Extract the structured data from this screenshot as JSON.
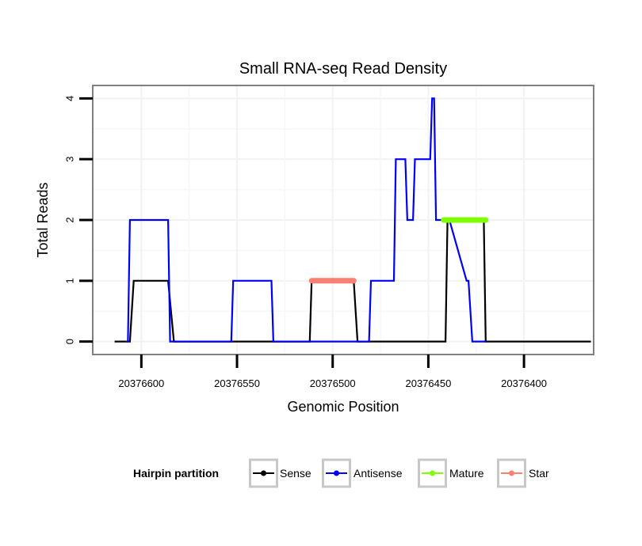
{
  "chart_data": {
    "type": "line",
    "title": "Small RNA-seq Read Density",
    "xlabel": "Genomic Position",
    "ylabel": "Total Reads",
    "x_reversed": true,
    "xlim": [
      20376364,
      20376625
    ],
    "ylim": [
      -0.2,
      4.2
    ],
    "x_ticks": [
      20376600,
      20376550,
      20376500,
      20376450,
      20376400
    ],
    "x_tick_labels": [
      "20376600",
      "20376550",
      "20376500",
      "20376450",
      "20376400"
    ],
    "y_ticks": [
      0,
      1,
      2,
      3,
      4
    ],
    "y_tick_labels": [
      "0",
      "1",
      "2",
      "3",
      "4"
    ],
    "grid": true,
    "legend": {
      "title": "Hairpin partition",
      "position": "bottom",
      "entries": [
        {
          "name": "Sense",
          "color": "#000000"
        },
        {
          "name": "Antisense",
          "color": "#0000ff"
        },
        {
          "name": "Mature",
          "color": "#7fff00"
        },
        {
          "name": "Star",
          "color": "#fa8072"
        }
      ]
    },
    "series": [
      {
        "name": "Sense",
        "color": "#000000",
        "x": [
          20376614,
          20376606,
          20376604,
          20376586,
          20376583,
          20376512,
          20376511,
          20376489,
          20376487,
          20376441,
          20376440,
          20376421,
          20376420,
          20376365
        ],
        "y": [
          0,
          0,
          1,
          1,
          0,
          0,
          1,
          1,
          0,
          0,
          2,
          2,
          0,
          0
        ]
      },
      {
        "name": "Antisense",
        "color": "#0000ff",
        "x": [
          20376608,
          20376607,
          20376606,
          20376586,
          20376585,
          20376553,
          20376552,
          20376532,
          20376531,
          20376489,
          20376488,
          20376481,
          20376480,
          20376468,
          20376467,
          20376462,
          20376461,
          20376458,
          20376457,
          20376449,
          20376448,
          20376447,
          20376446,
          20376440,
          20376439,
          20376430,
          20376429,
          20376427,
          20376426,
          20376420
        ],
        "y": [
          0,
          0,
          2,
          2,
          0,
          0,
          1,
          1,
          0,
          0,
          0,
          0,
          1,
          1,
          3,
          3,
          2,
          2,
          3,
          3,
          4,
          4,
          2,
          2,
          2,
          1,
          1,
          0,
          0,
          0
        ]
      },
      {
        "name": "Mature",
        "color": "#7fff00",
        "x": [
          20376442,
          20376420
        ],
        "y": [
          2,
          2
        ]
      },
      {
        "name": "Star",
        "color": "#fa8072",
        "x": [
          20376511,
          20376489
        ],
        "y": [
          1,
          1
        ]
      }
    ]
  }
}
